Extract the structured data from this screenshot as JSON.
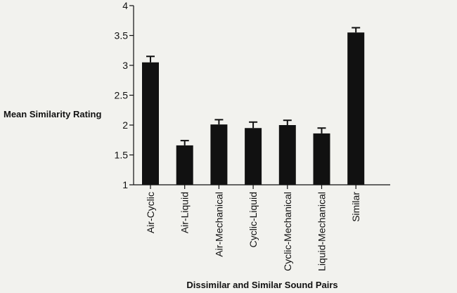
{
  "chart_data": {
    "type": "bar",
    "xlabel": "Dissimilar and Similar Sound Pairs",
    "ylabel": "Mean Similarity Rating",
    "ylim": [
      1,
      4
    ],
    "yticks": [
      "1",
      "1.5",
      "2",
      "2.5",
      "3",
      "3.5",
      "4"
    ],
    "categories": [
      "Air-Cyclic",
      "Air-Liquid",
      "Air-Mechanical",
      "Cyclic-Liquid",
      "Cyclic-Mechanical",
      "Liquid-Mechanical",
      "Similar"
    ],
    "values": [
      3.05,
      1.66,
      2.01,
      1.95,
      2.0,
      1.86,
      3.55
    ],
    "error": [
      0.1,
      0.08,
      0.08,
      0.1,
      0.08,
      0.09,
      0.08
    ],
    "grid": false,
    "colors": {
      "bar": "#111111",
      "axis": "#111111",
      "background": "#f2f2ee"
    }
  }
}
